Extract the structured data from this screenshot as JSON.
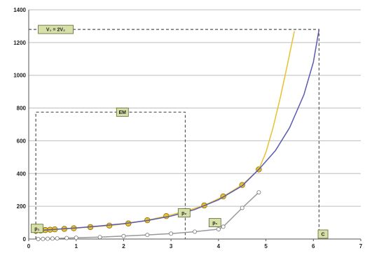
{
  "chart_data": {
    "type": "line",
    "xlim": [
      0,
      7
    ],
    "ylim": [
      0,
      1400
    ],
    "x_ticks": [
      "0",
      "1",
      "2",
      "3",
      "4",
      "5",
      "6",
      "7"
    ],
    "y_ticks": [
      "0",
      "200",
      "400",
      "600",
      "800",
      "1000",
      "1200",
      "1400"
    ],
    "grid": "horizontal",
    "series": [
      {
        "color": "#e8c030",
        "marker": "filled-circle",
        "x": [
          0.15,
          0.25,
          0.35,
          0.45,
          0.55,
          0.75,
          0.95,
          1.3,
          1.7,
          2.1,
          2.5,
          2.9,
          3.3,
          3.7,
          4.1,
          4.5,
          4.85
        ],
        "y": [
          50,
          52,
          55,
          57,
          59,
          62,
          66,
          73,
          82,
          95,
          115,
          140,
          170,
          205,
          260,
          330,
          425
        ]
      },
      {
        "color": "#e8c030",
        "marker": "none",
        "x": [
          4.85,
          5.0,
          5.15,
          5.3,
          5.45,
          5.6
        ],
        "y": [
          425,
          530,
          680,
          860,
          1060,
          1270
        ]
      },
      {
        "color": "#5a5ab0",
        "marker": "none",
        "x": [
          0.15,
          0.5,
          1.0,
          1.5,
          2.0,
          2.5,
          3.0,
          3.5,
          4.0,
          4.5,
          4.85,
          5.2,
          5.5,
          5.8,
          6.0,
          6.12
        ],
        "y": [
          50,
          58,
          68,
          80,
          94,
          113,
          140,
          180,
          240,
          325,
          425,
          540,
          680,
          880,
          1080,
          1280
        ]
      },
      {
        "color": "#999999",
        "marker": "open-circle",
        "x": [
          0.2,
          0.3,
          0.4,
          0.5,
          0.6,
          0.8,
          1.0,
          1.5,
          2.0,
          2.5,
          3.0,
          3.5,
          4.0,
          4.1,
          4.5,
          4.85
        ],
        "y": [
          0,
          1,
          2,
          3,
          4,
          6,
          8,
          12,
          18,
          25,
          33,
          45,
          60,
          75,
          190,
          285
        ]
      }
    ],
    "annotations": [
      {
        "text": "V₁ = 2V₂",
        "x": 0.2,
        "y": 1280
      },
      {
        "text": "EM",
        "x": 1.85,
        "y": 775
      },
      {
        "text": "p₂",
        "x": 3.15,
        "y": 160
      },
      {
        "text": "p₁",
        "x": 0.05,
        "y": 65
      },
      {
        "text": "p₁",
        "x": 3.8,
        "y": 100
      },
      {
        "text": "C",
        "x": 6.1,
        "y": 30
      }
    ]
  }
}
